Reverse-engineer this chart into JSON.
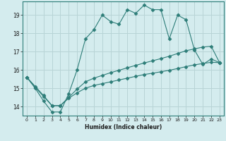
{
  "xlabel": "Humidex (Indice chaleur)",
  "bg_color": "#d4ecee",
  "line_color": "#2d7d78",
  "grid_color": "#b8d4d6",
  "xlim": [
    -0.5,
    23.5
  ],
  "ylim": [
    13.5,
    19.75
  ],
  "yticks": [
    14,
    15,
    16,
    17,
    18,
    19
  ],
  "xticks": [
    0,
    1,
    2,
    3,
    4,
    5,
    6,
    7,
    8,
    9,
    10,
    11,
    12,
    13,
    14,
    15,
    16,
    17,
    18,
    19,
    20,
    21,
    22,
    23
  ],
  "line1_x": [
    0,
    1,
    2,
    3,
    4,
    5,
    6,
    7,
    8,
    9,
    10,
    11,
    12,
    13,
    14,
    15,
    16,
    17,
    18,
    19,
    20,
    21,
    22,
    23
  ],
  "line1_y": [
    15.6,
    15.0,
    14.3,
    13.7,
    13.7,
    14.7,
    16.0,
    17.7,
    18.2,
    19.0,
    18.65,
    18.5,
    19.3,
    19.1,
    19.55,
    19.3,
    19.3,
    17.7,
    19.0,
    18.75,
    17.1,
    16.3,
    16.6,
    16.4
  ],
  "line2_x": [
    0,
    1,
    2,
    3,
    4,
    5,
    6,
    7,
    8,
    9,
    10,
    11,
    12,
    13,
    14,
    15,
    16,
    17,
    18,
    19,
    20,
    21,
    22,
    23
  ],
  "line2_y": [
    15.6,
    15.05,
    14.55,
    14.05,
    14.05,
    14.45,
    14.75,
    15.0,
    15.15,
    15.25,
    15.35,
    15.45,
    15.55,
    15.65,
    15.75,
    15.82,
    15.9,
    15.98,
    16.08,
    16.18,
    16.28,
    16.35,
    16.42,
    16.4
  ],
  "line3_x": [
    0,
    1,
    2,
    3,
    4,
    5,
    6,
    7,
    8,
    9,
    10,
    11,
    12,
    13,
    14,
    15,
    16,
    17,
    18,
    19,
    20,
    21,
    22,
    23
  ],
  "line3_y": [
    15.6,
    15.1,
    14.6,
    14.05,
    14.05,
    14.5,
    14.95,
    15.35,
    15.55,
    15.7,
    15.85,
    15.98,
    16.12,
    16.25,
    16.38,
    16.5,
    16.62,
    16.75,
    16.9,
    17.05,
    17.15,
    17.25,
    17.3,
    16.4
  ]
}
